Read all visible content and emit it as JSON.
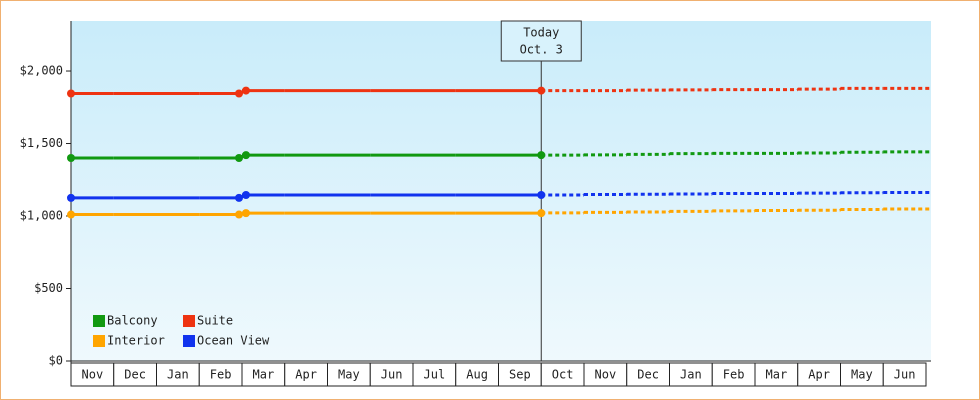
{
  "chart_data": {
    "type": "line",
    "categories": [
      "Nov",
      "Dec",
      "Jan",
      "Feb",
      "Mar",
      "Apr",
      "May",
      "Jun",
      "Jul",
      "Aug",
      "Sep",
      "Oct",
      "Nov",
      "Dec",
      "Jan",
      "Feb",
      "Mar",
      "Apr",
      "May",
      "Jun"
    ],
    "series": [
      {
        "name": "Balcony",
        "color": "#119911",
        "values": [
          1400,
          1400,
          1400,
          1400,
          1420,
          1420,
          1420,
          1420,
          1420,
          1420,
          1420,
          1420,
          1422,
          1425,
          1430,
          1432,
          1432,
          1435,
          1440,
          1442
        ]
      },
      {
        "name": "Suite",
        "color": "#ee3311",
        "values": [
          1845,
          1845,
          1845,
          1845,
          1865,
          1865,
          1865,
          1865,
          1865,
          1865,
          1865,
          1865,
          1865,
          1868,
          1870,
          1872,
          1872,
          1875,
          1880,
          1880
        ]
      },
      {
        "name": "Interior",
        "color": "#ffa500",
        "values": [
          1010,
          1010,
          1010,
          1010,
          1020,
          1020,
          1020,
          1020,
          1020,
          1020,
          1020,
          1022,
          1025,
          1028,
          1032,
          1035,
          1038,
          1040,
          1045,
          1048
        ]
      },
      {
        "name": "Ocean View",
        "color": "#1133ee",
        "values": [
          1125,
          1125,
          1125,
          1125,
          1145,
          1145,
          1145,
          1145,
          1145,
          1145,
          1145,
          1145,
          1148,
          1150,
          1152,
          1155,
          1155,
          1158,
          1160,
          1162
        ]
      }
    ],
    "today": {
      "label": [
        "Today",
        "Oct. 3"
      ],
      "category": "Oct"
    },
    "ylim": [
      0,
      2345
    ],
    "yticks": [
      {
        "value": 0,
        "label": "$0"
      },
      {
        "value": 500,
        "label": "$500"
      },
      {
        "value": 1000,
        "label": "$1,000"
      },
      {
        "value": 1500,
        "label": "$1,500"
      },
      {
        "value": 2000,
        "label": "$2,000"
      }
    ],
    "legend": "bottom-left"
  }
}
